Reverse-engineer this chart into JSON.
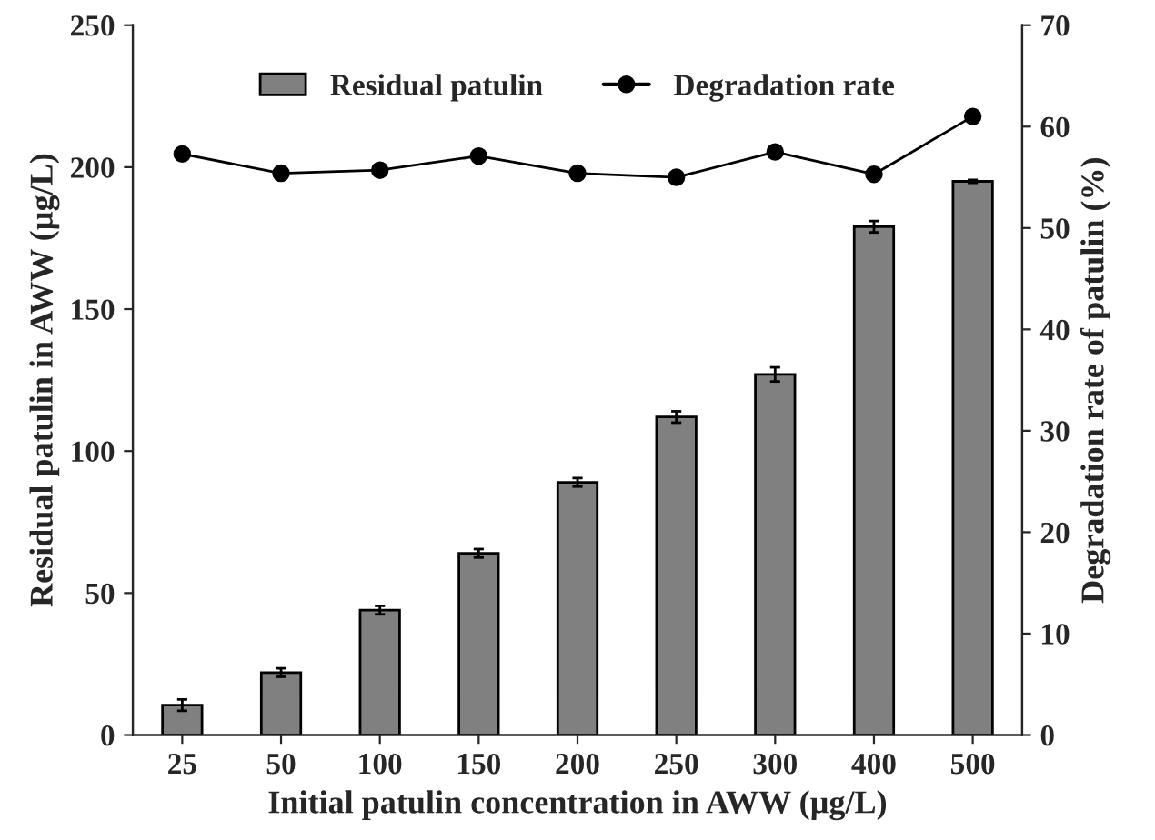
{
  "chart_data": {
    "type": "bar",
    "xlabel": "Initial patulin concentration in AWW (µg/L)",
    "ylabel": "Residual patulin in AWW (µg/L)",
    "y2label": "Degradation rate of patulin (%)",
    "categories": [
      "25",
      "50",
      "100",
      "150",
      "200",
      "250",
      "300",
      "400",
      "500"
    ],
    "series": [
      {
        "name": "Residual patulin",
        "color": "#808080",
        "values": [
          10.5,
          22,
          44,
          64,
          89,
          112,
          127,
          179,
          195
        ],
        "errors": [
          2,
          1.5,
          1.5,
          1.5,
          1.5,
          2,
          2.5,
          2,
          0.5
        ]
      },
      {
        "name": "Degradation rate",
        "type": "line",
        "axis": "y2",
        "color": "#000000",
        "marker": "circle",
        "line_style": "solid",
        "values": [
          57.3,
          55.4,
          55.7,
          57.1,
          55.4,
          55.0,
          57.5,
          55.3,
          61.0
        ]
      }
    ],
    "ylim": [
      0,
      250
    ],
    "yticks": [
      0,
      50,
      100,
      150,
      200,
      250
    ],
    "y2lim": [
      0,
      70
    ],
    "y2ticks": [
      0,
      10,
      20,
      30,
      40,
      50,
      60,
      70
    ],
    "legend": "top",
    "grid": false
  }
}
